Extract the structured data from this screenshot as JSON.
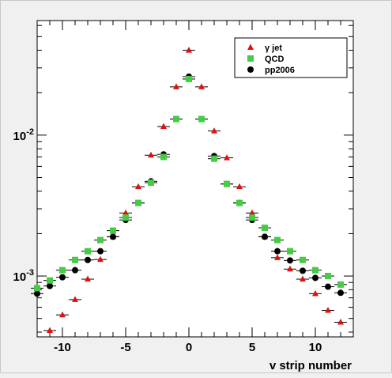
{
  "chart_data": {
    "type": "scatter",
    "xlabel": "v strip number",
    "ylabel": "",
    "xlim": [
      -12,
      13
    ],
    "ylim": [
      0.00037,
      0.065
    ],
    "yscale": "log",
    "x_tick_labels": [
      "-10",
      "-5",
      "0",
      "5",
      "10"
    ],
    "x_ticks": [
      -10,
      -5,
      0,
      5,
      10
    ],
    "y_ticks": [
      {
        "value": 0.01,
        "base": "10",
        "exp": "-2"
      },
      {
        "value": 0.001,
        "base": "10",
        "exp": "-3"
      }
    ],
    "grid": false,
    "legend": {
      "placement": "top-right"
    },
    "x_error": 0.5,
    "series": [
      {
        "name": "γ jet",
        "marker": "triangle",
        "color": "#e01010",
        "x": [
          -11,
          -10,
          -9,
          -8,
          -7,
          -6,
          -5,
          -4,
          -3,
          -2,
          -1,
          0,
          1,
          2,
          3,
          4,
          5,
          6,
          7,
          8,
          9,
          10,
          11,
          12
        ],
        "y": [
          0.00041,
          0.00053,
          0.00068,
          0.00095,
          0.00131,
          0.0019,
          0.0028,
          0.0043,
          0.0072,
          0.0115,
          0.022,
          0.04,
          0.022,
          0.0107,
          0.0069,
          0.0043,
          0.0028,
          0.0019,
          0.00135,
          0.00112,
          0.00095,
          0.00075,
          0.00057,
          0.00047
        ]
      },
      {
        "name": "QCD",
        "marker": "square",
        "color": "#44cc44",
        "x": [
          -12,
          -11,
          -10,
          -9,
          -8,
          -7,
          -6,
          -5,
          -4,
          -3,
          -2,
          -1,
          0,
          1,
          2,
          3,
          4,
          5,
          6,
          7,
          8,
          9,
          10,
          11,
          12
        ],
        "y": [
          0.00082,
          0.00093,
          0.0011,
          0.0013,
          0.0015,
          0.0018,
          0.0021,
          0.0026,
          0.0033,
          0.0046,
          0.007,
          0.013,
          0.025,
          0.013,
          0.0068,
          0.0045,
          0.0033,
          0.0026,
          0.0022,
          0.0018,
          0.0015,
          0.0013,
          0.0011,
          0.001,
          0.00087
        ]
      },
      {
        "name": "pp2006",
        "marker": "circle",
        "color": "#000000",
        "x": [
          -12,
          -11,
          -10,
          -9,
          -8,
          -7,
          -6,
          -5,
          -4,
          -3,
          -2,
          -1,
          0,
          1,
          2,
          3,
          4,
          5,
          6,
          7,
          8,
          9,
          10,
          11,
          12
        ],
        "y": [
          0.00075,
          0.00085,
          0.00098,
          0.0011,
          0.0013,
          0.0015,
          0.0019,
          0.0025,
          0.0033,
          0.0047,
          0.0073,
          0.013,
          0.026,
          0.013,
          0.0071,
          0.0045,
          0.0033,
          0.0025,
          0.0019,
          0.0015,
          0.00129,
          0.00109,
          0.00097,
          0.00084,
          0.00076
        ]
      }
    ]
  }
}
